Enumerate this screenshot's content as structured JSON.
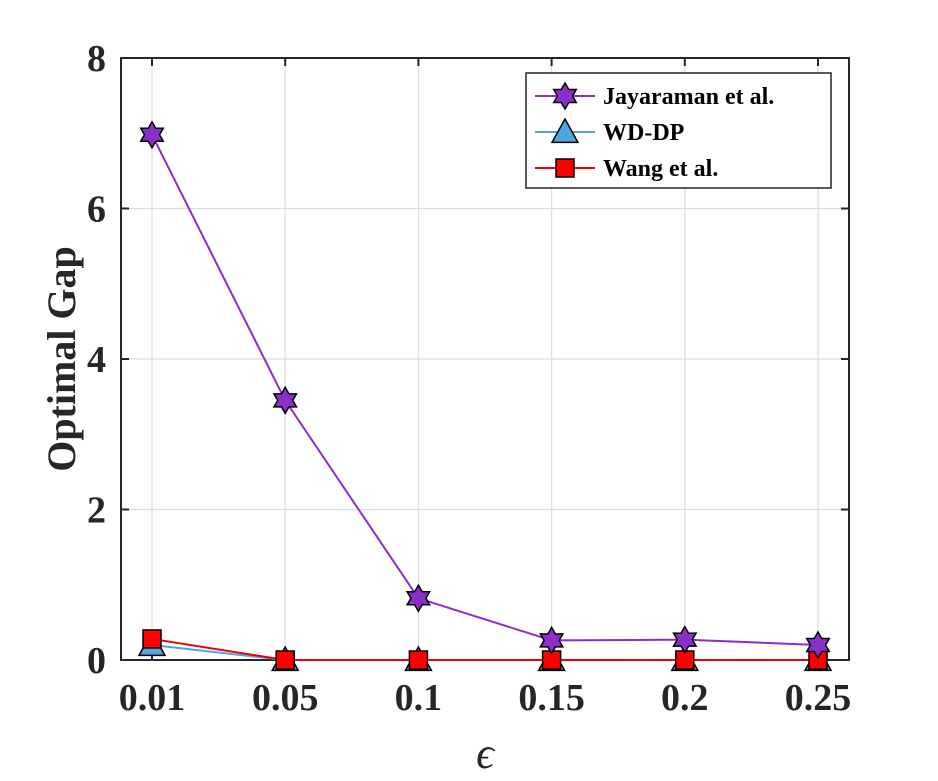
{
  "chart_data": {
    "type": "line",
    "title": "",
    "xlabel": "ϵ",
    "ylabel": "Optimal Gap",
    "categories": [
      "0.01",
      "0.05",
      "0.1",
      "0.15",
      "0.2",
      "0.25"
    ],
    "yticks": [
      "0",
      "2",
      "4",
      "6",
      "8"
    ],
    "ylim": [
      0,
      8
    ],
    "grid": true,
    "legend_position": "top-right",
    "series": [
      {
        "name": "Jayaraman et al.",
        "values": [
          6.98,
          3.45,
          0.82,
          0.26,
          0.27,
          0.2
        ],
        "color": "#8b2fc9",
        "marker_fill": "#8b2fc9",
        "marker": "hexagram"
      },
      {
        "name": "WD-DP",
        "values": [
          0.2,
          0.0,
          0.0,
          0.0,
          0.0,
          0.0
        ],
        "color": "#4da6e0",
        "marker_fill": "#4da6e0",
        "marker": "triangle"
      },
      {
        "name": "Wang et al.",
        "values": [
          0.28,
          0.0,
          0.0,
          0.0,
          0.0,
          0.0
        ],
        "color": "#e8000b",
        "marker_fill": "#ff0000",
        "marker": "square"
      }
    ]
  }
}
